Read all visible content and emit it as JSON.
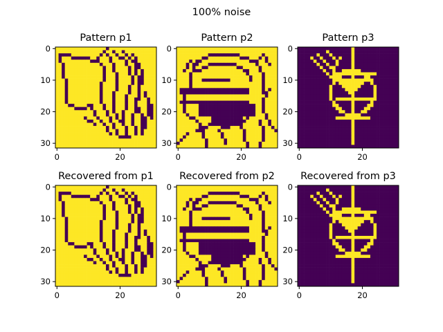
{
  "figure": {
    "suptitle": "100% noise"
  },
  "colors": {
    "high": "#fde725",
    "low": "#440154"
  },
  "chart_data": [
    {
      "type": "heatmap",
      "title": "Pattern p1",
      "xticks": [
        0,
        20
      ],
      "yticks": [
        0,
        10,
        20,
        30
      ],
      "size": 32,
      "key": "p1"
    },
    {
      "type": "heatmap",
      "title": "Pattern p2",
      "xticks": [
        0,
        20
      ],
      "yticks": [
        0,
        10,
        20,
        30
      ],
      "size": 32,
      "key": "p2"
    },
    {
      "type": "heatmap",
      "title": "Pattern p3",
      "xticks": [
        0,
        20
      ],
      "yticks": [
        0,
        10,
        20,
        30
      ],
      "size": 32,
      "key": "p3"
    },
    {
      "type": "heatmap",
      "title": "Recovered from p1",
      "xticks": [
        0,
        20
      ],
      "yticks": [
        0,
        10,
        20,
        30
      ],
      "size": 32,
      "key": "p1"
    },
    {
      "type": "heatmap",
      "title": "Recovered from p2",
      "xticks": [
        0,
        20
      ],
      "yticks": [
        0,
        10,
        20,
        30
      ],
      "size": 32,
      "key": "p2"
    },
    {
      "type": "heatmap",
      "title": "Recovered from p3",
      "xticks": [
        0,
        20
      ],
      "yticks": [
        0,
        10,
        20,
        30
      ],
      "size": 32,
      "key": "p3"
    }
  ],
  "patterns": {
    "p1": {
      "background": 1,
      "polylines": [
        [
          [
            1,
            2
          ],
          [
            9,
            3
          ],
          [
            12,
            4
          ]
        ],
        [
          [
            1,
            2
          ],
          [
            2,
            8
          ],
          [
            3,
            12
          ],
          [
            3,
            17
          ],
          [
            7,
            19
          ],
          [
            11,
            18
          ],
          [
            12,
            21
          ],
          [
            15,
            24
          ],
          [
            17,
            27
          ]
        ],
        [
          [
            9,
            3
          ],
          [
            13,
            4
          ],
          [
            15,
            6
          ],
          [
            15,
            9
          ],
          [
            14,
            12
          ],
          [
            14,
            17
          ],
          [
            16,
            21
          ],
          [
            20,
            28
          ],
          [
            23,
            28
          ]
        ],
        [
          [
            12,
            4
          ],
          [
            14,
            2
          ],
          [
            16,
            0
          ]
        ],
        [
          [
            15,
            1
          ],
          [
            18,
            5
          ],
          [
            19,
            10
          ],
          [
            18,
            16
          ],
          [
            18,
            20
          ],
          [
            20,
            23
          ]
        ],
        [
          [
            18,
            1
          ],
          [
            22,
            4
          ],
          [
            24,
            10
          ],
          [
            22,
            16
          ],
          [
            21,
            22
          ],
          [
            22,
            27
          ]
        ],
        [
          [
            21,
            1
          ],
          [
            25,
            5
          ],
          [
            26,
            12
          ],
          [
            25,
            18
          ],
          [
            24,
            22
          ],
          [
            25,
            27
          ]
        ],
        [
          [
            24,
            2
          ],
          [
            26,
            5
          ],
          [
            27,
            9
          ],
          [
            26,
            14
          ],
          [
            25,
            18
          ],
          [
            27,
            21
          ],
          [
            27,
            27
          ]
        ],
        [
          [
            26,
            10
          ],
          [
            26,
            14
          ]
        ],
        [
          [
            28,
            14
          ],
          [
            29,
            18
          ],
          [
            28,
            25
          ]
        ],
        [
          [
            30,
            18
          ],
          [
            30,
            22
          ]
        ],
        [
          [
            9,
            22
          ],
          [
            12,
            24
          ]
        ]
      ],
      "fills": []
    },
    "p2": {
      "background": 1,
      "polylines": [
        [
          [
            6,
            4
          ],
          [
            11,
            2
          ],
          [
            18,
            2
          ],
          [
            24,
            4
          ],
          [
            27,
            8
          ],
          [
            27,
            14
          ]
        ],
        [
          [
            6,
            4
          ],
          [
            4,
            8
          ],
          [
            4,
            13
          ]
        ],
        [
          [
            2,
            7
          ],
          [
            4,
            4
          ],
          [
            6,
            5
          ]
        ],
        [
          [
            25,
            4
          ],
          [
            27,
            2
          ],
          [
            29,
            5
          ]
        ],
        [
          [
            2,
            15
          ],
          [
            2,
            20
          ]
        ],
        [
          [
            29,
            13
          ],
          [
            27,
            16
          ],
          [
            27,
            20
          ],
          [
            29,
            24
          ],
          [
            31,
            26
          ]
        ],
        [
          [
            6,
            7
          ],
          [
            11,
            5
          ],
          [
            18,
            5
          ],
          [
            22,
            7
          ],
          [
            23,
            10
          ]
        ],
        [
          [
            8,
            10
          ],
          [
            16,
            10
          ]
        ],
        [
          [
            2,
            20
          ],
          [
            6,
            23
          ],
          [
            8,
            27
          ],
          [
            9,
            31
          ]
        ],
        [
          [
            23,
            20
          ],
          [
            20,
            24
          ],
          [
            21,
            28
          ],
          [
            22,
            31
          ]
        ],
        [
          [
            26,
            23
          ],
          [
            27,
            27
          ],
          [
            26,
            31
          ]
        ],
        [
          [
            0,
            30
          ],
          [
            3,
            27
          ]
        ],
        [
          [
            6,
            26
          ],
          [
            11,
            24
          ],
          [
            16,
            25
          ]
        ],
        [
          [
            13,
            26
          ],
          [
            15,
            30
          ]
        ]
      ],
      "fills": [
        [
          1,
          13,
          22,
          2
        ],
        [
          1,
          17,
          22,
          1
        ],
        [
          7,
          18,
          18,
          4
        ],
        [
          11,
          22,
          10,
          3
        ]
      ]
    },
    "p3": {
      "background": 0,
      "polylines": [
        [
          [
            17,
            0
          ],
          [
            17,
            30
          ]
        ],
        [
          [
            11,
            8
          ],
          [
            24,
            8
          ]
        ],
        [
          [
            12,
            16
          ],
          [
            24,
            16
          ]
        ],
        [
          [
            12,
            22
          ],
          [
            22,
            22
          ]
        ],
        [
          [
            4,
            3
          ],
          [
            9,
            8
          ],
          [
            12,
            10
          ]
        ],
        [
          [
            6,
            2
          ],
          [
            11,
            7
          ],
          [
            13,
            9
          ]
        ],
        [
          [
            9,
            1
          ],
          [
            12,
            4
          ]
        ],
        [
          [
            13,
            3
          ],
          [
            11,
            6
          ]
        ],
        [
          [
            14,
            7
          ],
          [
            12,
            10
          ]
        ]
      ],
      "circles": [
        {
          "cx": 17,
          "cy": 14,
          "r": 7
        }
      ],
      "triangles": [
        [
          [
            12,
            10
          ],
          [
            21,
            10
          ],
          [
            17,
            15
          ]
        ]
      ],
      "fills": []
    }
  }
}
